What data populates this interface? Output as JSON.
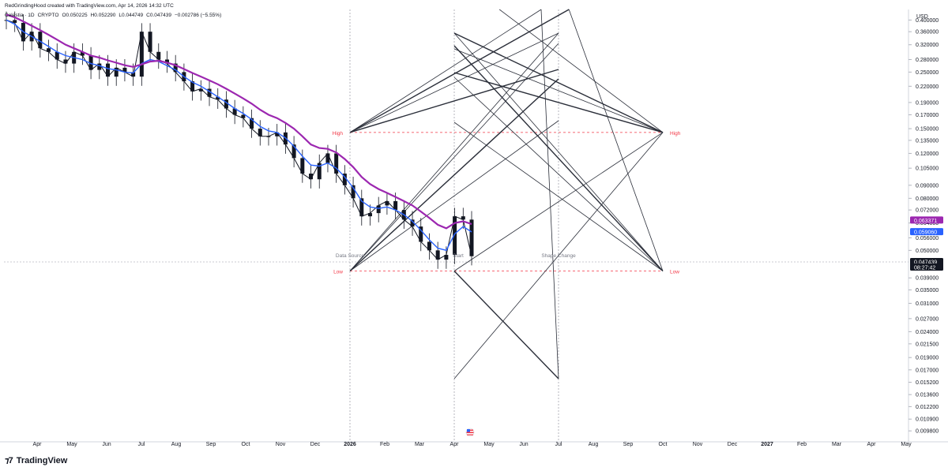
{
  "header": {
    "attribution": "RedGrindingHood created with TradingView.com, Apr 14, 2026 14:32 UTC",
    "symbol": "Celestia · 1D",
    "exchange": "CRYPTO",
    "open": "O0.050225",
    "high": "H0.052290",
    "low": "L0.044749",
    "close": "C0.047439",
    "change": "−0.002786 (−5.55%)"
  },
  "brand": {
    "name": "TradingView",
    "logo_icon": "tradingview-logo-icon"
  },
  "chart_data": {
    "type": "line",
    "currency": "USD",
    "scale": "log",
    "y_ticks": [
      "0.400000",
      "0.360000",
      "0.320000",
      "0.280000",
      "0.250000",
      "0.220000",
      "0.190000",
      "0.170000",
      "0.150000",
      "0.135000",
      "0.120000",
      "0.105000",
      "0.090000",
      "0.080000",
      "0.072000",
      "0.064000",
      "0.056000",
      "0.050000",
      "0.039000",
      "0.035000",
      "0.031000",
      "0.027000",
      "0.024000",
      "0.021500",
      "0.019000",
      "0.017000",
      "0.015200",
      "0.013600",
      "0.012200",
      "0.010900",
      "0.009800"
    ],
    "x_ticks": [
      "Apr",
      "May",
      "Jun",
      "Jul",
      "Aug",
      "Sep",
      "Oct",
      "Nov",
      "Dec",
      "2026",
      "Feb",
      "Mar",
      "Apr",
      "May",
      "Jun",
      "Jul",
      "Aug",
      "Sep",
      "Oct",
      "Nov",
      "Dec",
      "2027",
      "Feb",
      "Mar",
      "Apr",
      "May"
    ],
    "ylim": [
      0.0094,
      0.44
    ],
    "series": [
      {
        "values": [
          0.4,
          0.39,
          0.33,
          0.36,
          0.31,
          0.3,
          0.28,
          0.27,
          0.3,
          0.29,
          0.255,
          0.27,
          0.24,
          0.26,
          0.25,
          0.24,
          0.36,
          0.3,
          0.28,
          0.27,
          0.25,
          0.23,
          0.21,
          0.215,
          0.2,
          0.195,
          0.18,
          0.17,
          0.165,
          0.15,
          0.14,
          0.14,
          0.145,
          0.13,
          0.115,
          0.1,
          0.095,
          0.11,
          0.12,
          0.1,
          0.09,
          0.08,
          0.068,
          0.07,
          0.075,
          0.078,
          0.072,
          0.066,
          0.062,
          0.054,
          0.05,
          0.046,
          0.048,
          0.068,
          0.066,
          0.047439
        ],
        "color": "#131722"
      },
      {
        "values": [
          0.4,
          0.385,
          0.36,
          0.345,
          0.33,
          0.315,
          0.3,
          0.29,
          0.285,
          0.28,
          0.27,
          0.265,
          0.258,
          0.255,
          0.25,
          0.248,
          0.27,
          0.28,
          0.275,
          0.265,
          0.255,
          0.24,
          0.228,
          0.22,
          0.21,
          0.2,
          0.19,
          0.18,
          0.172,
          0.163,
          0.153,
          0.147,
          0.145,
          0.138,
          0.128,
          0.117,
          0.108,
          0.107,
          0.11,
          0.105,
          0.097,
          0.088,
          0.078,
          0.074,
          0.073,
          0.074,
          0.072,
          0.069,
          0.065,
          0.06,
          0.055,
          0.051,
          0.05,
          0.058,
          0.062,
          0.05906
        ],
        "color": "#2962ff"
      },
      {
        "values": [
          0.42,
          0.41,
          0.395,
          0.38,
          0.365,
          0.35,
          0.335,
          0.32,
          0.31,
          0.3,
          0.29,
          0.285,
          0.278,
          0.272,
          0.266,
          0.262,
          0.268,
          0.275,
          0.277,
          0.272,
          0.266,
          0.257,
          0.248,
          0.24,
          0.232,
          0.224,
          0.215,
          0.206,
          0.197,
          0.188,
          0.178,
          0.17,
          0.165,
          0.158,
          0.15,
          0.14,
          0.13,
          0.126,
          0.125,
          0.121,
          0.114,
          0.106,
          0.097,
          0.091,
          0.087,
          0.084,
          0.081,
          0.078,
          0.075,
          0.071,
          0.067,
          0.063,
          0.061,
          0.064,
          0.065,
          0.063371
        ],
        "color": "#9c27b0"
      }
    ],
    "price_labels": [
      {
        "value": "0.063371",
        "color": "#9c27b0"
      },
      {
        "value": "0.059060",
        "color": "#2962ff"
      },
      {
        "value": "0.047439",
        "color": "#131722"
      },
      {
        "value": "08:27:42",
        "color": "#131722"
      }
    ],
    "drawing": {
      "labels": [
        "High",
        "Low",
        "High",
        "Low",
        "Data Source",
        "Start",
        "Shape Change"
      ],
      "levels": [
        0.145,
        0.0415
      ]
    }
  }
}
